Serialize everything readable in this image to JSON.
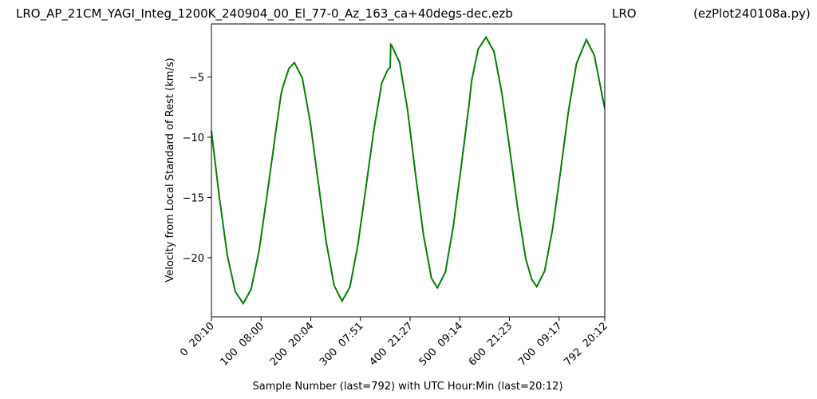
{
  "chart_data": {
    "type": "line",
    "titles": [
      "LRO_AP_21CM_YAGI_Integ_1200K_240904_00_El_77-0_Az_163_ca+40degs-dec.ezb",
      "LRO",
      "(ezPlot240108a.py)"
    ],
    "xlabel": "Sample Number (last=792) with UTC Hour:Min (last=20:12)",
    "ylabel": "Velocity from Local Standard of Rest (km/s)",
    "x": [
      0,
      16,
      32,
      48,
      64,
      80,
      96,
      112,
      128,
      140,
      144,
      156,
      167,
      183,
      199,
      215,
      231,
      247,
      263,
      279,
      295,
      311,
      327,
      343,
      355,
      360,
      361,
      363,
      379,
      395,
      411,
      427,
      443,
      455,
      471,
      487,
      503,
      519,
      522,
      524,
      537,
      553,
      569,
      585,
      601,
      617,
      633,
      645,
      655,
      671,
      687,
      703,
      719,
      735,
      755,
      771,
      787,
      792
    ],
    "series": [
      {
        "name": "velocity",
        "color": "#008000",
        "values": [
          -9.5,
          -15,
          -19.8,
          -22.8,
          -23.8,
          -22.6,
          -19.4,
          -14.8,
          -10.0,
          -6.5,
          -5.8,
          -4.3,
          -3.8,
          -5.1,
          -8.75,
          -13.7,
          -18.65,
          -22.3,
          -23.6,
          -22.4,
          -18.9,
          -14.2,
          -9.4,
          -5.5,
          -4.4,
          -4.2,
          -2.3,
          -2.4,
          -3.8,
          -7.75,
          -13.1,
          -18.1,
          -21.7,
          -22.5,
          -21.2,
          -17.4,
          -12.4,
          -7.2,
          -6.0,
          -5.3,
          -2.7,
          -1.7,
          -2.9,
          -6.4,
          -11.1,
          -16.0,
          -20.1,
          -21.8,
          -22.4,
          -21.1,
          -17.6,
          -12.8,
          -7.8,
          -3.9,
          -1.9,
          -3.2,
          -6.6,
          -7.6
        ]
      }
    ],
    "xlim": [
      0,
      792
    ],
    "xticks": [
      {
        "value": 0,
        "label": "0  20:10"
      },
      {
        "value": 100,
        "label": "100  08:00"
      },
      {
        "value": 200,
        "label": "200  20:04"
      },
      {
        "value": 300,
        "label": "300  07:51"
      },
      {
        "value": 400,
        "label": "400  21:27"
      },
      {
        "value": 500,
        "label": "500  09:14"
      },
      {
        "value": 600,
        "label": "600  21:23"
      },
      {
        "value": 700,
        "label": "700  09:17"
      },
      {
        "value": 792,
        "label": "792  20:12"
      }
    ],
    "ylim": [
      -24.9,
      -0.6
    ],
    "yticks": [
      {
        "value": -5,
        "label": "−5"
      },
      {
        "value": -10,
        "label": "−10"
      },
      {
        "value": -15,
        "label": "−15"
      },
      {
        "value": -20,
        "label": "−20"
      }
    ],
    "grid": false
  }
}
